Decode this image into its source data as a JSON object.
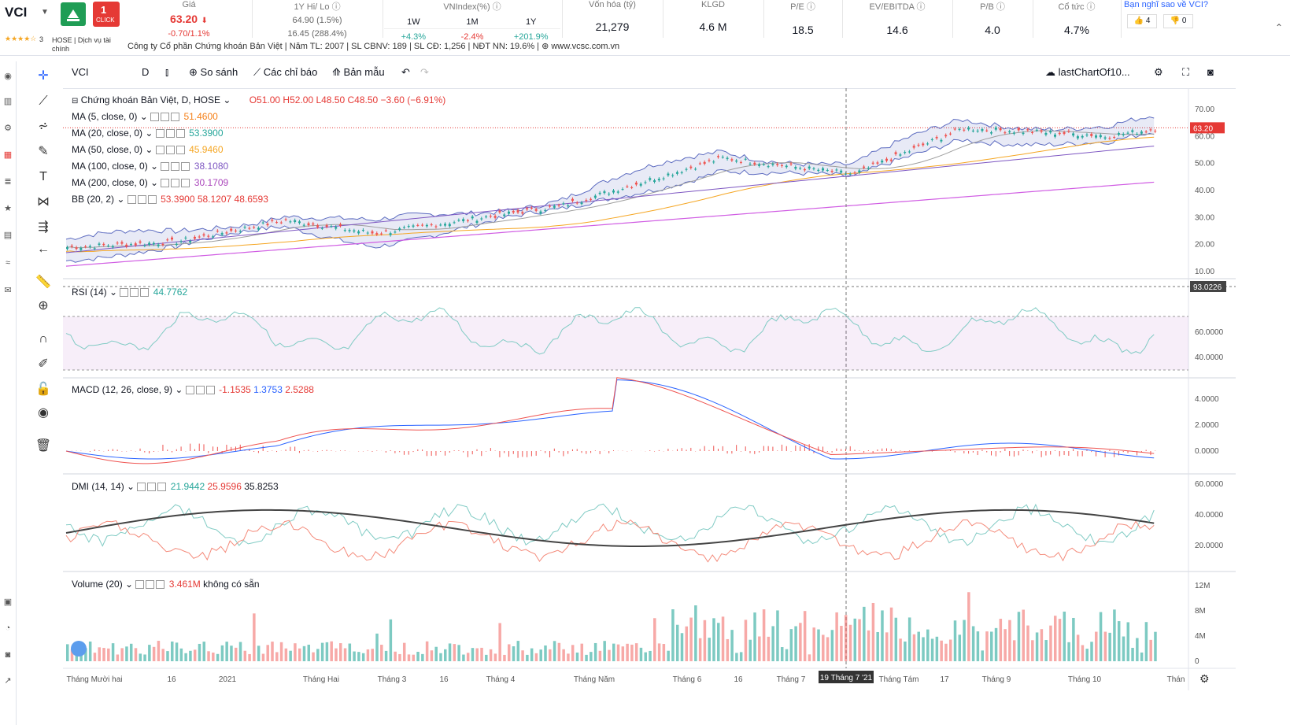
{
  "header": {
    "symbol": "VCI",
    "rating_stars": "★★★★☆",
    "rating_count": "3",
    "exchange": "HOSE",
    "service": "Dịch vụ tài chính",
    "logo1_label": "",
    "logo2_label": "1 CLICK",
    "price_label": "Giá",
    "price": "63.20",
    "price_change": "-0.70/1.1%",
    "hilo_label": "1Y Hi/ Lo",
    "hi": "64.90 (1.5%)",
    "lo": "16.45 (288.4%)",
    "vnindex_label": "VNIndex(%)",
    "vn_periods": [
      "1W",
      "1M",
      "1Y"
    ],
    "vn_values": [
      "+4.3%",
      "-2.4%",
      "+201.9%"
    ],
    "mcap_label": "Vốn hóa (tỷ)",
    "mcap": "21,279",
    "klgd_label": "KLGD",
    "klgd": "4.6 M",
    "pe_label": "P/E",
    "pe": "18.5",
    "ev_label": "EV/EBITDA",
    "ev": "14.6",
    "pb_label": "P/B",
    "pb": "4.0",
    "div_label": "Cổ tức",
    "div": "4.7%",
    "poll_label": "Bạn nghĩ sao về VCI?",
    "likes": "4",
    "dislikes": "0",
    "company_line": "Công ty Cổ phần Chứng khoán Bản Việt | Năm TL: 2007 | SL CBNV: 189 | SL CĐ: 1,256 | NĐT NN: 19.6% | ⊕ www.vcsc.com.vn"
  },
  "toolbar": {
    "symbol": "VCI",
    "interval": "D",
    "compare": "So sánh",
    "indicators": "Các chỉ báo",
    "template": "Bản mẫu",
    "layout_name": "lastChartOf10..."
  },
  "main_pane": {
    "title": "Chứng khoán Bản Việt, D, HOSE",
    "ohlc": "O51.00  H52.00  L48.50  C48.50  −3.60 (−6.91%)",
    "price_tag": "63.20",
    "price_ticks": [
      "70.00",
      "60.00",
      "50.00",
      "40.00",
      "30.00",
      "20.00",
      "10.00"
    ],
    "indicators": [
      {
        "label": "MA (5, close, 0)",
        "value": "51.4600",
        "color": "#f57f17"
      },
      {
        "label": "MA (20, close, 0)",
        "value": "53.3900",
        "color": "#26a69a"
      },
      {
        "label": "MA (50, close, 0)",
        "value": "45.9460",
        "color": "#f5a623"
      },
      {
        "label": "MA (100, close, 0)",
        "value": "38.1080",
        "color": "#7e57c2"
      },
      {
        "label": "MA (200, close, 0)",
        "value": "30.1709",
        "color": "#ab47bc"
      },
      {
        "label": "BB (20, 2)",
        "value": "53.3900  58.1207  48.6593",
        "color": "#e53935"
      }
    ]
  },
  "rsi_pane": {
    "label": "RSI (14)",
    "value": "44.7762",
    "ticks": [
      "93.0226",
      "60.0000",
      "40.0000"
    ]
  },
  "macd_pane": {
    "label": "MACD (12, 26, close, 9)",
    "v1": "-1.1535",
    "v2": "1.3753",
    "v3": "2.5288",
    "ticks": [
      "4.0000",
      "2.0000",
      "0.0000"
    ]
  },
  "dmi_pane": {
    "label": "DMI (14, 14)",
    "v1": "21.9442",
    "v2": "25.9596",
    "v3": "35.8253",
    "ticks": [
      "60.0000",
      "40.0000",
      "20.0000"
    ]
  },
  "vol_pane": {
    "label": "Volume (20)",
    "value": "3.461M",
    "note": "không có sẵn",
    "ticks": [
      "12M",
      "8M",
      "4M",
      "0"
    ]
  },
  "time_axis": {
    "labels": [
      "Tháng Mười hai",
      "16",
      "2021",
      "Tháng Hai",
      "Tháng 3",
      "16",
      "Tháng 4",
      "Tháng Năm",
      "Tháng 6",
      "16",
      "Tháng 7",
      "Tháng Tám",
      "17",
      "Tháng 9",
      "Tháng 10",
      "Thán"
    ],
    "crosshair_label": "19 Tháng 7 '21"
  },
  "colors": {
    "up": "#26a69a",
    "down": "#ef5350",
    "accent": "#2962ff"
  }
}
